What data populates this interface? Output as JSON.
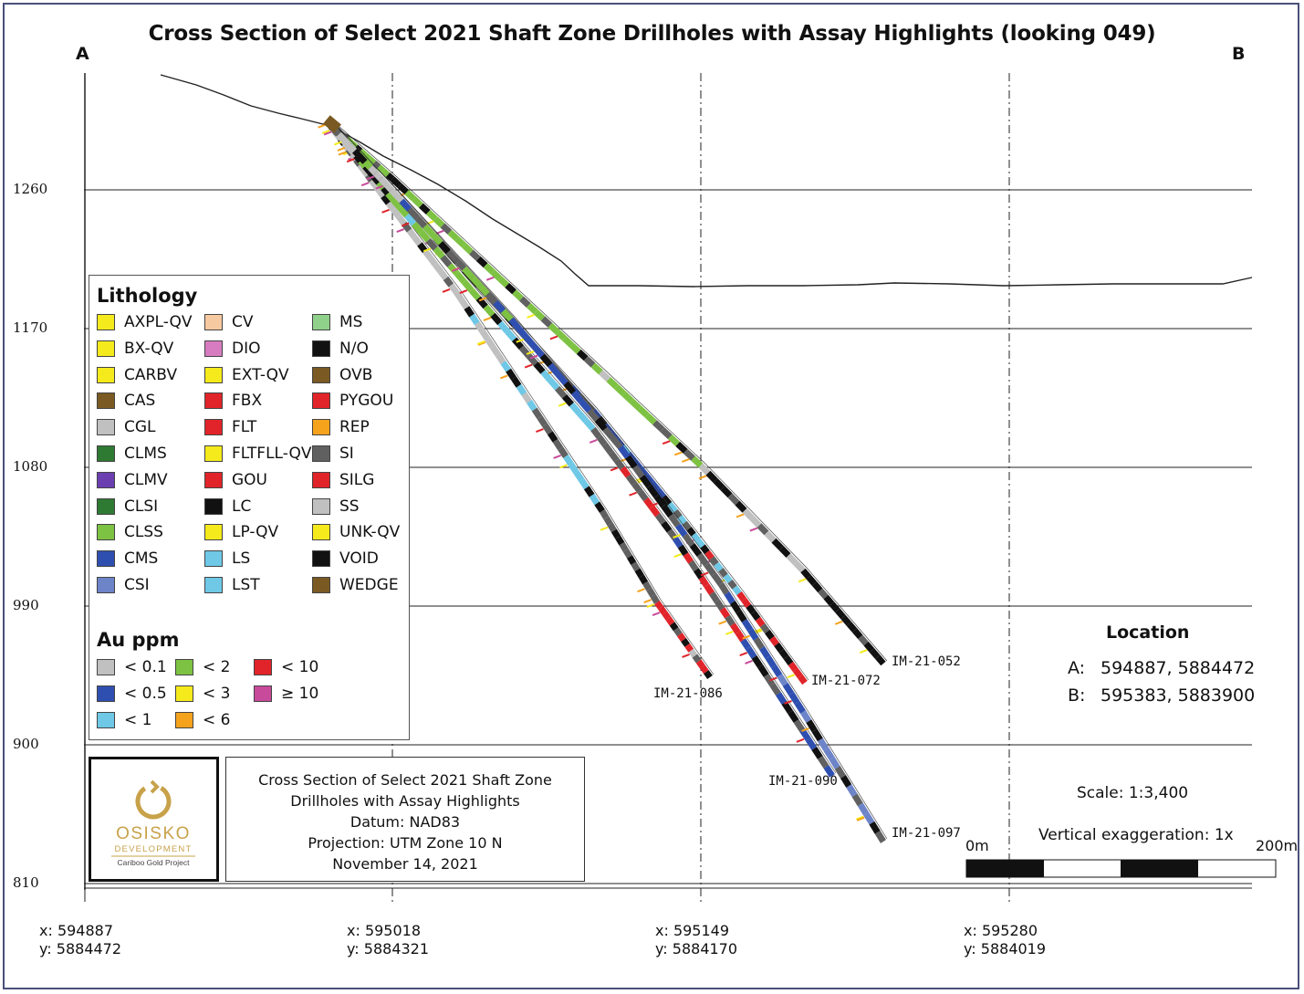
{
  "title": "Cross Section of Select 2021 Shaft Zone Drillholes with Assay Highlights (looking 049)",
  "section_ends": {
    "a": "A",
    "b": "B"
  },
  "elevations": [
    "1260",
    "1170",
    "1080",
    "990",
    "900",
    "810"
  ],
  "eastings": [
    {
      "x": "x: 594887",
      "y": "y: 5884472"
    },
    {
      "x": "x: 595018",
      "y": "y: 5884321"
    },
    {
      "x": "x: 595149",
      "y": "y: 5884170"
    },
    {
      "x": "x: 595280",
      "y": "y: 5884019"
    }
  ],
  "legend": {
    "lithology_title": "Lithology",
    "lithology": [
      {
        "label": "AXPL-QV",
        "color": "#f5ea1c"
      },
      {
        "label": "BX-QV",
        "color": "#f5ea1c"
      },
      {
        "label": "CARBV",
        "color": "#f5ea1c"
      },
      {
        "label": "CAS",
        "color": "#7a5a22"
      },
      {
        "label": "CGL",
        "color": "#c0c0c0"
      },
      {
        "label": "CLMS",
        "color": "#2e7a33"
      },
      {
        "label": "CLMV",
        "color": "#6b3fb0"
      },
      {
        "label": "CLSI",
        "color": "#2e7a33"
      },
      {
        "label": "CLSS",
        "color": "#7dc242"
      },
      {
        "label": "CMS",
        "color": "#2f4fb0"
      },
      {
        "label": "CSI",
        "color": "#6d84c8"
      },
      {
        "label": "CV",
        "color": "#f7c9a0"
      },
      {
        "label": "DIO",
        "color": "#d77cc0"
      },
      {
        "label": "EXT-QV",
        "color": "#f5ea1c"
      },
      {
        "label": "FBX",
        "color": "#e0242a"
      },
      {
        "label": "FLT",
        "color": "#e0242a"
      },
      {
        "label": "FLTFLL-QV",
        "color": "#f5ea1c"
      },
      {
        "label": "GOU",
        "color": "#e0242a"
      },
      {
        "label": "LC",
        "color": "#111111"
      },
      {
        "label": "LP-QV",
        "color": "#f5ea1c"
      },
      {
        "label": "LS",
        "color": "#6ec8e6"
      },
      {
        "label": "LST",
        "color": "#6ec8e6"
      },
      {
        "label": "MS",
        "color": "#8fd08a"
      },
      {
        "label": "N/O",
        "color": "#111111"
      },
      {
        "label": "OVB",
        "color": "#7a5a22"
      },
      {
        "label": "PYGOU",
        "color": "#e0242a"
      },
      {
        "label": "REP",
        "color": "#f5a21c"
      },
      {
        "label": "SI",
        "color": "#606060"
      },
      {
        "label": "SILG",
        "color": "#e0242a"
      },
      {
        "label": "SS",
        "color": "#c0c0c0"
      },
      {
        "label": "UNK-QV",
        "color": "#f5ea1c"
      },
      {
        "label": "VOID",
        "color": "#111111"
      },
      {
        "label": "WEDGE",
        "color": "#7a5a22"
      }
    ],
    "au_title": "Au ppm",
    "au": [
      {
        "label": "< 0.1",
        "color": "#c0c0c0"
      },
      {
        "label": "< 0.5",
        "color": "#2f4fb0"
      },
      {
        "label": "< 1",
        "color": "#6ec8e6"
      },
      {
        "label": "< 2",
        "color": "#7dc242"
      },
      {
        "label": "< 3",
        "color": "#f5ea1c"
      },
      {
        "label": "< 6",
        "color": "#f5a21c"
      },
      {
        "label": "< 10",
        "color": "#e0242a"
      },
      {
        "label": "≥ 10",
        "color": "#c84a9a"
      }
    ]
  },
  "drillholes": [
    "IM-21-052",
    "IM-21-072",
    "IM-21-086",
    "IM-21-090",
    "IM-21-097"
  ],
  "info": {
    "line1": "Cross Section of Select 2021 Shaft Zone",
    "line2": "Drillholes with Assay Highlights",
    "line3": "Datum: NAD83",
    "line4": "Projection: UTM Zone 10 N",
    "line5": "November 14, 2021"
  },
  "logo": {
    "name": "OSISKO",
    "sub": "DEVELOPMENT",
    "project": "Cariboo Gold Project",
    "color": "#c8a24a"
  },
  "location": {
    "title": "Location",
    "a_label": "A:",
    "a_value": "594887, 5884472",
    "b_label": "B:",
    "b_value": "595383, 5883900"
  },
  "scale": {
    "ratio": "Scale: 1:3,400",
    "exaggeration": "Vertical exaggeration: 1x",
    "start": "0m",
    "end": "200m"
  }
}
